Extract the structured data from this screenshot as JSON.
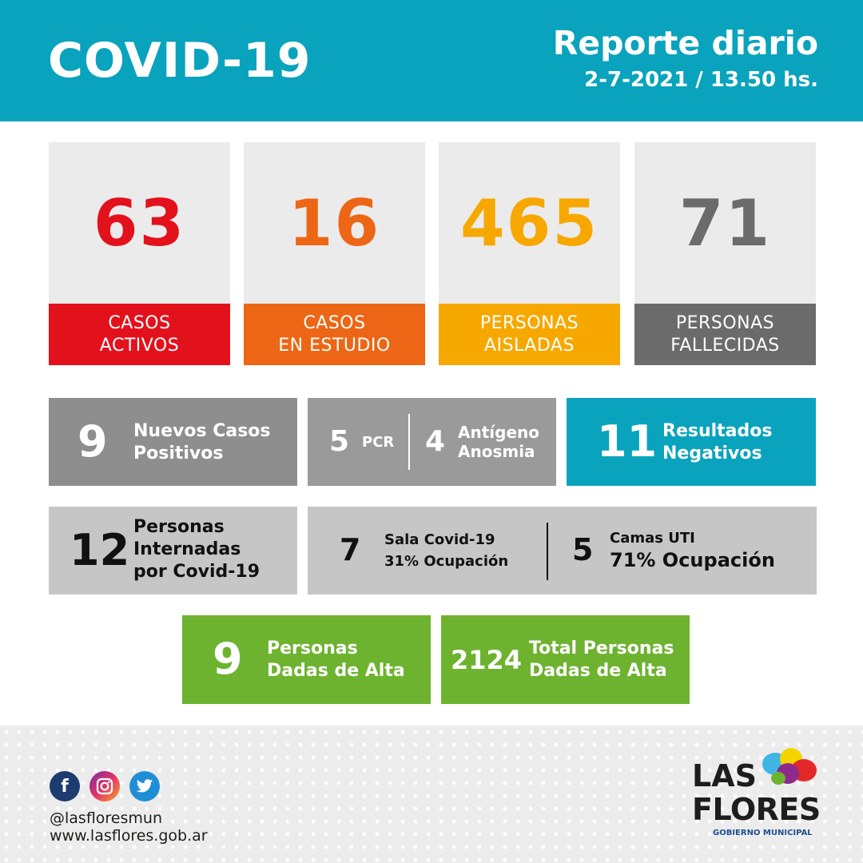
{
  "header": {
    "title": "COVID-19",
    "report_title": "Reporte diario",
    "date_time": "2-7-2021 / 13.50 hs."
  },
  "cards": [
    {
      "value": "63",
      "label": "CASOS\nACTIVOS",
      "value_color": "#e3111c",
      "label_bg": "#e3111c"
    },
    {
      "value": "16",
      "label": "CASOS\nEN ESTUDIO",
      "value_color": "#ec6615",
      "label_bg": "#ec6615"
    },
    {
      "value": "465",
      "label": "PERSONAS\nAISLADAS",
      "value_color": "#f6a800",
      "label_bg": "#f6a800"
    },
    {
      "value": "71",
      "label": "PERSONAS\nFALLECIDAS",
      "value_color": "#6b6b6b",
      "label_bg": "#6b6b6b"
    }
  ],
  "row1": {
    "new_cases": {
      "value": "9",
      "label": "Nuevos Casos\nPositivos"
    },
    "pcr": {
      "value": "5",
      "label": "PCR"
    },
    "antigen": {
      "value": "4",
      "label": "Antígeno\nAnosmia"
    },
    "negatives": {
      "value": "11",
      "label": "Resultados\nNegativos"
    }
  },
  "row2": {
    "hospitalized": {
      "value": "12",
      "label": "Personas\nInternadas\npor Covid-19"
    },
    "covid_ward": {
      "value": "7",
      "label": "Sala Covid-19",
      "occupancy": "31% Ocupación"
    },
    "icu": {
      "value": "5",
      "label": "Camas UTI",
      "occupancy": "71% Ocupación"
    }
  },
  "row3": {
    "discharged": {
      "value": "9",
      "label": "Personas\nDadas de Alta"
    },
    "total_discharged": {
      "value": "2124",
      "label": "Total Personas\nDadas de Alta"
    }
  },
  "footer": {
    "handle": "@lasfloresmun",
    "website": "www.lasflores.gob.ar",
    "social_icons": [
      "facebook-icon",
      "instagram-icon",
      "twitter-icon"
    ],
    "logo_line1": "LAS",
    "logo_line2": "FLORES",
    "logo_subtitle": "GOBIERNO MUNICIPAL"
  },
  "colors": {
    "header_teal": "#0aa3bd",
    "box_dark_gray": "#8e8e8e",
    "box_mid_gray": "#9a9a9a",
    "box_light_gray": "#c6c6c6",
    "box_green": "#6db32f",
    "logo_blue": "#1d4f91"
  }
}
